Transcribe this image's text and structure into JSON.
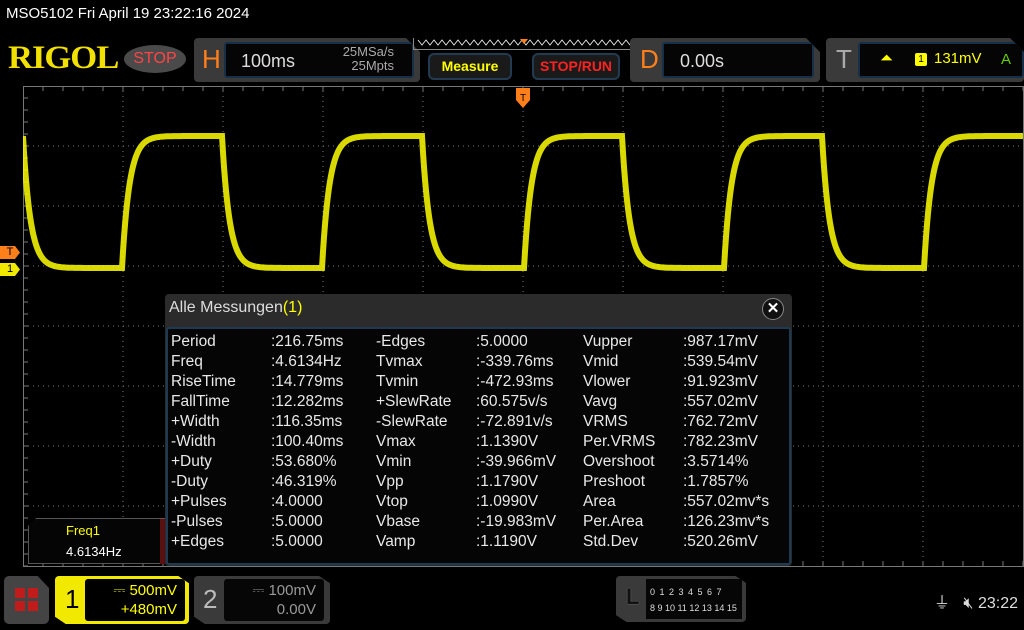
{
  "title": "MSO5102  Fri April 19 23:22:16 2024",
  "logo": "RIGOL",
  "run_state": "STOP",
  "horizontal": {
    "letter": "H",
    "timebase": "100ms",
    "sample_rate": "25MSa/s",
    "memory_depth": "25Mpts"
  },
  "buttons": {
    "measure": "Measure",
    "stop_run": "STOP/RUN"
  },
  "delay": {
    "letter": "D",
    "value": "0.00s"
  },
  "trigger": {
    "letter": "T",
    "slope_icon": "rising-edge-icon",
    "channel": "1",
    "level": "131mV",
    "mode": "A"
  },
  "markers": {
    "trigger": "T",
    "channel1": "1"
  },
  "dialog": {
    "title": "Alle Messungen",
    "count": "(1)",
    "close": "✕",
    "rows": [
      [
        [
          "Period",
          ":216.75ms"
        ],
        [
          "-Edges",
          ":5.0000"
        ],
        [
          "Vupper",
          ":987.17mV"
        ]
      ],
      [
        [
          "Freq",
          ":4.6134Hz"
        ],
        [
          "Tvmax",
          ":-339.76ms"
        ],
        [
          "Vmid",
          ":539.54mV"
        ]
      ],
      [
        [
          "RiseTime",
          ":14.779ms"
        ],
        [
          "Tvmin",
          ":-472.93ms"
        ],
        [
          "Vlower",
          ":91.923mV"
        ]
      ],
      [
        [
          "FallTime",
          ":12.282ms"
        ],
        [
          "+SlewRate",
          ":60.575v/s"
        ],
        [
          "Vavg",
          ":557.02mV"
        ]
      ],
      [
        [
          "+Width",
          ":116.35ms"
        ],
        [
          "-SlewRate",
          ":-72.891v/s"
        ],
        [
          "VRMS",
          ":762.72mV"
        ]
      ],
      [
        [
          "-Width",
          ":100.40ms"
        ],
        [
          "Vmax",
          ":1.1390V"
        ],
        [
          "Per.VRMS",
          ":782.23mV"
        ]
      ],
      [
        [
          "+Duty",
          ":53.680%"
        ],
        [
          "Vmin",
          ":-39.966mV"
        ],
        [
          "Overshoot",
          ":3.5714%"
        ]
      ],
      [
        [
          "-Duty",
          ":46.319%"
        ],
        [
          "Vpp",
          ":1.1790V"
        ],
        [
          "Preshoot",
          ":1.7857%"
        ]
      ],
      [
        [
          "+Pulses",
          ":4.0000"
        ],
        [
          "Vtop",
          ":1.0990V"
        ],
        [
          "Area",
          ":557.02mv*s"
        ]
      ],
      [
        [
          "-Pulses",
          ":5.0000"
        ],
        [
          "Vbase",
          ":-19.983mV"
        ],
        [
          "Per.Area",
          ":126.23mv*s"
        ]
      ],
      [
        [
          "+Edges",
          ":5.0000"
        ],
        [
          "Vamp",
          ":1.1190V"
        ],
        [
          "Std.Dev",
          ":520.26mV"
        ]
      ]
    ]
  },
  "freq_result": {
    "name": "Freq1",
    "value": "4.6134Hz"
  },
  "channel1": {
    "number": "1",
    "scale": "500mV",
    "offset": "+480mV",
    "color": "#f2e900"
  },
  "channel2": {
    "number": "2",
    "scale": "100mV",
    "offset": "0.00V"
  },
  "logic": {
    "letter": "L",
    "row1": "0 1 2 3  4 5 6 7",
    "row2": "8 9 10 11 12 13 14 15"
  },
  "status": {
    "usb_icon": "usb-icon",
    "sound_icon": "speaker-muted-icon",
    "time": "23:22"
  },
  "colors": {
    "trace": "#ffff00",
    "accent": "#ff7f1a",
    "logo": "#f2e000"
  }
}
